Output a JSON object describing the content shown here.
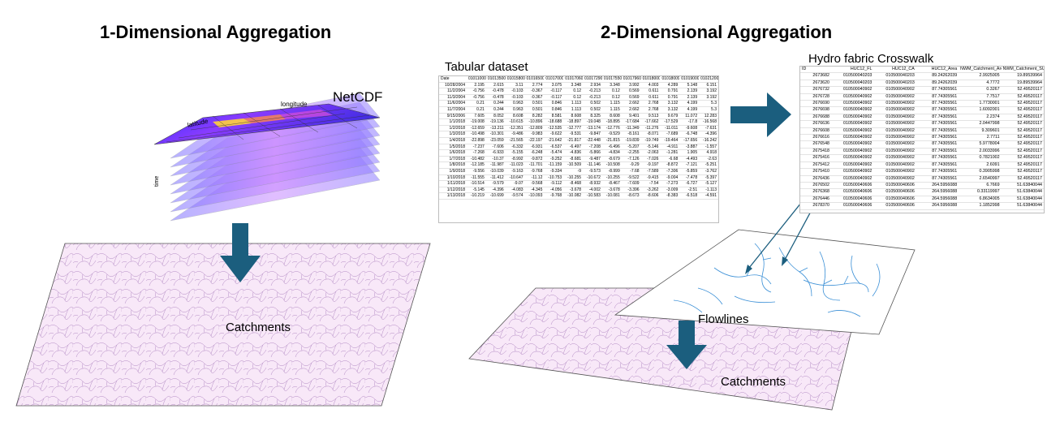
{
  "headings": {
    "one_d": "1-Dimensional Aggregation",
    "two_d": "2-Dimensional Aggregation"
  },
  "labels": {
    "netcdf": "NetCDF",
    "longitude": "longitude",
    "latitude": "latitude",
    "time": "time",
    "catchments_left": "Catchments",
    "tabular_title": "Tabular dataset",
    "crosswalk_title": "Hydro fabric Crosswalk",
    "flowlines": "Flowlines",
    "catchments_right": "Catchments"
  },
  "colors": {
    "arrow": "#1b5e7e",
    "catchment_fill": "#f8e8f8",
    "catchment_line": "#b38ac4",
    "flowline": "#3a8fd6"
  },
  "tabular": {
    "header": [
      "Date",
      "01011000",
      "01013500",
      "01015800",
      "01016500",
      "01017000",
      "01017060",
      "01017290",
      "01017550",
      "01017960",
      "01018000",
      "01018009",
      "01019000",
      "01021200"
    ],
    "rows": [
      [
        "10/28/2004",
        "2.195",
        "2.615",
        "3.11",
        "2.774",
        "3.075",
        "3.348",
        "2.934",
        "3.348",
        "3.992",
        "4.003",
        "4.289",
        "5.148",
        "6.151"
      ],
      [
        "11/2/2004",
        "-0.756",
        "-0.478",
        "-0.103",
        "-0.367",
        "-0.117",
        "0.12",
        "-0.213",
        "0.12",
        "0.569",
        "0.611",
        "0.791",
        "2.139",
        "3.192"
      ],
      [
        "11/3/2004",
        "-0.756",
        "-0.478",
        "-0.103",
        "-0.367",
        "-0.117",
        "0.12",
        "-0.213",
        "0.12",
        "0.569",
        "0.611",
        "0.791",
        "2.139",
        "3.192"
      ],
      [
        "11/6/2004",
        "0.21",
        "0.244",
        "0.963",
        "0.501",
        "0.846",
        "1.113",
        "0.502",
        "1.115",
        "2.662",
        "2.768",
        "3.132",
        "4.199",
        "5.3"
      ],
      [
        "11/7/2004",
        "0.21",
        "0.244",
        "0.963",
        "0.501",
        "0.846",
        "1.113",
        "0.502",
        "1.115",
        "2.662",
        "2.768",
        "3.132",
        "4.199",
        "5.3"
      ],
      [
        "9/15/2006",
        "7.605",
        "8.052",
        "8.608",
        "8.282",
        "8.581",
        "8.608",
        "8.325",
        "8.608",
        "9.401",
        "9.513",
        "9.679",
        "11.072",
        "12.283"
      ],
      [
        "1/1/2018",
        "-19.008",
        "-19.136",
        "-10.615",
        "-10.896",
        "-18.688",
        "-18.897",
        "-19.048",
        "-18.895",
        "-17.684",
        "-17.662",
        "-17.529",
        "-17.8",
        "-16.568"
      ],
      [
        "1/2/2018",
        "-12.659",
        "-13.211",
        "-12.351",
        "-12.809",
        "-12.535",
        "-12.777",
        "-13.174",
        "-12.776",
        "-11.349",
        "-11.276",
        "-11.011",
        "-9.608",
        "-7.631"
      ],
      [
        "1/3/2018",
        "-10.498",
        "-10.301",
        "-9.486",
        "-9.983",
        "-9.622",
        "-9.531",
        "-9.847",
        "-9.529",
        "-8.161",
        "-8.071",
        "-7.689",
        "-6.748",
        "-4.396"
      ],
      [
        "1/4/2018",
        "-22.898",
        "-23.059",
        "-21.565",
        "-22.197",
        "-21.642",
        "-21.817",
        "-22.448",
        "-21.815",
        "-19.839",
        "-19.749",
        "-19.464",
        "-17.656",
        "-16.242"
      ],
      [
        "1/5/2018",
        "-7.237",
        "-7.606",
        "-6.332",
        "-6.931",
        "-6.537",
        "-6.497",
        "-7.208",
        "-6.496",
        "-5.207",
        "-5.146",
        "-4.911",
        "-3.887",
        "-1.557"
      ],
      [
        "1/6/2018",
        "-7.268",
        "-6.933",
        "-5.155",
        "-6.248",
        "-5.474",
        "-4.836",
        "-5.866",
        "-4.834",
        "-2.255",
        "-2.063",
        "-1.281",
        "1.905",
        "4.918"
      ],
      [
        "1/7/2018",
        "-10.482",
        "-10.37",
        "-8.992",
        "-9.872",
        "-9.252",
        "-8.681",
        "-9.487",
        "-8.679",
        "-7.126",
        "-7.026",
        "-6.68",
        "-4.493",
        "-2.63"
      ],
      [
        "1/8/2018",
        "-12.185",
        "-11.987",
        "-11.023",
        "-11.701",
        "-11.159",
        "-10.509",
        "-11.146",
        "-10.508",
        "-9.29",
        "-9.197",
        "-8.872",
        "-7.121",
        "-5.251"
      ],
      [
        "1/9/2018",
        "-9.556",
        "-10.039",
        "-9.163",
        "-9.768",
        "-9.334",
        "-9",
        "-9.573",
        "-8.999",
        "-7.68",
        "-7.589",
        "-7.306",
        "-5.859",
        "-3.762"
      ],
      [
        "1/10/2018",
        "-11.555",
        "-11.412",
        "-10.647",
        "-11.12",
        "-10.753",
        "-10.255",
        "-10.672",
        "-10.255",
        "-9.522",
        "-9.415",
        "-9.004",
        "-7.478",
        "-5.397"
      ],
      [
        "1/11/2018",
        "-10.514",
        "-9.579",
        "-9.07",
        "-9.568",
        "-9.112",
        "-8.468",
        "-8.932",
        "-8.467",
        "-7.609",
        "-7.54",
        "-7.273",
        "-6.727",
        "-5.127"
      ],
      [
        "1/12/2018",
        "-5.145",
        "-4.396",
        "-4.083",
        "-4.345",
        "-4.056",
        "-3.678",
        "-4.002",
        "-3.678",
        "-3.396",
        "-3.262",
        "-3.009",
        "-2.51",
        "-1.113"
      ],
      [
        "1/13/2018",
        "-10.219",
        "-10.699",
        "-9.574",
        "-10.093",
        "-9.768",
        "-10.082",
        "-10.583",
        "-10.081",
        "-8.673",
        "-8.606",
        "-8.383",
        "-6.518",
        "-4.591"
      ]
    ]
  },
  "crosswalk": {
    "header": [
      "ID",
      "HUC12_FL",
      "HUC12_CA",
      "HUC12_Area",
      "NWM_Catchment_Area",
      "NWM_Catchment_SUM"
    ],
    "rows": [
      [
        "2673682",
        "010500040203",
        "010500040203",
        "89.24262039",
        "2.9925005",
        "19.89539964"
      ],
      [
        "2673620",
        "010500040203",
        "010500040203",
        "89.24262039",
        "4.7772",
        "19.89539964"
      ],
      [
        "2676732",
        "010500040902",
        "010500040902",
        "87.74305561",
        "0.3267",
        "52.49520117"
      ],
      [
        "2676728",
        "010500040902",
        "010500040902",
        "87.74305561",
        "7.7517",
        "52.49520117"
      ],
      [
        "2676690",
        "010500040902",
        "010500040902",
        "87.74305561",
        "1.7730001",
        "52.49520117"
      ],
      [
        "2676698",
        "010500040902",
        "010500040902",
        "87.74305561",
        "1.6092001",
        "52.49520117"
      ],
      [
        "2676688",
        "010500040902",
        "010500040902",
        "87.74305561",
        "2.2374",
        "52.49520117"
      ],
      [
        "2676636",
        "010500040902",
        "010500040902",
        "87.74305561",
        "2.0447998",
        "52.49520117"
      ],
      [
        "2676608",
        "010500040902",
        "010500040902",
        "87.74305561",
        "9.309601",
        "52.49520117"
      ],
      [
        "2676616",
        "010500040902",
        "010500040902",
        "87.74305561",
        "2.7711",
        "52.49520117"
      ],
      [
        "2676548",
        "010500040902",
        "010500040902",
        "87.74305561",
        "5.9778004",
        "52.49520117"
      ],
      [
        "2675418",
        "010500040902",
        "010500040902",
        "87.74305561",
        "2.0033996",
        "52.49520117"
      ],
      [
        "2675416",
        "010500040902",
        "010500040902",
        "87.74305561",
        "0.7821002",
        "52.49520117"
      ],
      [
        "2675412",
        "010500040902",
        "010500040902",
        "87.74305561",
        "2.6091",
        "52.49520117"
      ],
      [
        "2675410",
        "010500040902",
        "010500040902",
        "87.74305561",
        "0.3905998",
        "52.49520117"
      ],
      [
        "2676436",
        "010500040902",
        "010500040902",
        "87.74305561",
        "2.6540997",
        "52.49520117"
      ],
      [
        "2676502",
        "010500040606",
        "010500040606",
        "264.5956088",
        "6.7669",
        "51.63840044"
      ],
      [
        "2676368",
        "010500040606",
        "010500040606",
        "264.5956088",
        "0.33119997",
        "51.63840044"
      ],
      [
        "2676446",
        "010500040606",
        "010500040606",
        "264.5956088",
        "6.8634005",
        "51.63840044"
      ],
      [
        "2678370",
        "010500040606",
        "010500040606",
        "264.5956088",
        "1.1852998",
        "51.63840044"
      ]
    ]
  }
}
